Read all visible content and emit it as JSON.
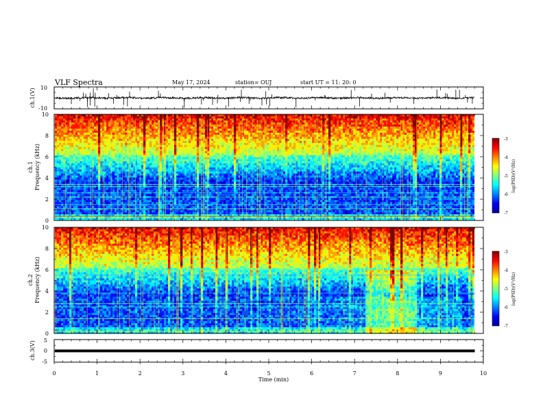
{
  "header": {
    "title": "VLF Spectra",
    "date": "May 17, 2024",
    "station": "station= OUJ",
    "start": "start  UT =   11: 20: 0"
  },
  "chart_data": [
    {
      "id": "ch1_waveform",
      "type": "line",
      "ylabel": "ch.1(V)",
      "ylim": [
        -10,
        10
      ],
      "y_ticks": [
        "10",
        "-10"
      ],
      "xlim": [
        0,
        10
      ],
      "description_values": {
        "data_end_min": 9.8,
        "baseline": 0
      }
    },
    {
      "id": "ch1_spectrogram",
      "type": "heatmap",
      "ylabel_line1": "ch.1",
      "ylabel_line2": "Frequency  (kHz)",
      "ylim": [
        0,
        10
      ],
      "y_ticks": [
        "0",
        "2",
        "4",
        "6",
        "8",
        "10"
      ],
      "xlim": [
        0,
        10
      ],
      "colorbar": {
        "label": "log(PSD)(V²/Hz)",
        "range": [
          -7,
          -3
        ],
        "ticks": [
          "-3",
          "-4",
          "-5",
          "-6",
          "-7"
        ]
      }
    },
    {
      "id": "ch2_spectrogram",
      "type": "heatmap",
      "ylabel_line1": "ch.2",
      "ylabel_line2": "Frequency  (kHz)",
      "ylim": [
        0,
        10
      ],
      "y_ticks": [
        "0",
        "2",
        "4",
        "6",
        "8",
        "10"
      ],
      "xlim": [
        0,
        10
      ],
      "colorbar": {
        "label": "log(PSD)(V²/Hz)",
        "range": [
          -7,
          -3
        ],
        "ticks": [
          "-3",
          "-4",
          "-5",
          "-6",
          "-7"
        ]
      }
    },
    {
      "id": "ch3_waveform",
      "type": "line",
      "ylabel": "ch.3(V)",
      "ylim": [
        -5,
        5
      ],
      "y_ticks": [
        "5",
        "0",
        "-5"
      ],
      "xlim": [
        0,
        10
      ],
      "xlabel": "Time  (min)",
      "x_ticks": [
        "0",
        "1",
        "2",
        "3",
        "4",
        "5",
        "6",
        "7",
        "8",
        "9",
        "10"
      ],
      "description_values": {
        "data_end_min": 9.8,
        "level": 0
      }
    }
  ],
  "colors": {
    "jet_dark_blue": "#00008f",
    "jet_blue": "#0000ff",
    "jet_cyan": "#00ffff",
    "jet_green": "#7fff7f",
    "jet_yellow": "#ffff00",
    "jet_red": "#ff0000",
    "jet_dark_red": "#7f0000"
  }
}
